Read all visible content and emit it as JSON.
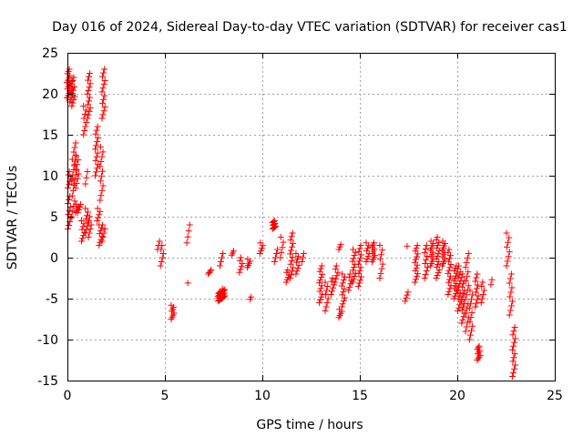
{
  "chart_data": {
    "type": "scatter",
    "title": "Day 016 of 2024, Sidereal Day-to-day VTEC variation (SDTVAR) for receiver cas1",
    "xlabel": "GPS time / hours",
    "ylabel": "SDTVAR / TECUs",
    "xlim": [
      0,
      25
    ],
    "ylim": [
      -15,
      25
    ],
    "xticks": [
      0,
      5,
      10,
      15,
      20,
      25
    ],
    "yticks": [
      -15,
      -10,
      -5,
      0,
      5,
      10,
      15,
      20,
      25
    ],
    "grid": true,
    "marker": "+",
    "color": "#ff0000",
    "clusters": [
      {
        "x": 0.05,
        "ymin": 19.5,
        "ymax": 23.0,
        "n": 14
      },
      {
        "x": 0.1,
        "ymin": 8.5,
        "ymax": 10.5,
        "n": 6
      },
      {
        "x": 0.1,
        "ymin": 3.5,
        "ymax": 7.5,
        "n": 10
      },
      {
        "x": 0.2,
        "ymin": 19.0,
        "ymax": 21.5,
        "n": 10
      },
      {
        "x": 0.3,
        "ymin": 18.5,
        "ymax": 22.0,
        "n": 10
      },
      {
        "x": 0.3,
        "ymin": 5.0,
        "ymax": 12.0,
        "n": 12
      },
      {
        "x": 0.4,
        "ymin": 9.0,
        "ymax": 14.0,
        "n": 10
      },
      {
        "x": 0.5,
        "ymin": 8.5,
        "ymax": 12.5,
        "n": 8
      },
      {
        "x": 0.5,
        "ymin": 5.5,
        "ymax": 6.5,
        "n": 5
      },
      {
        "x": 0.6,
        "ymin": 5.5,
        "ymax": 6.5,
        "n": 4
      },
      {
        "x": 0.8,
        "ymin": 2.0,
        "ymax": 4.5,
        "n": 8
      },
      {
        "x": 0.9,
        "ymin": 15.0,
        "ymax": 18.5,
        "n": 8
      },
      {
        "x": 1.0,
        "ymin": 3.0,
        "ymax": 6.0,
        "n": 8
      },
      {
        "x": 1.0,
        "ymin": 9.0,
        "ymax": 10.5,
        "n": 3
      },
      {
        "x": 1.1,
        "ymin": 17.0,
        "ymax": 22.5,
        "n": 14
      },
      {
        "x": 1.15,
        "ymin": 2.5,
        "ymax": 5.0,
        "n": 6
      },
      {
        "x": 1.5,
        "ymin": 10.0,
        "ymax": 16.0,
        "n": 14
      },
      {
        "x": 1.6,
        "ymin": 4.5,
        "ymax": 6.0,
        "n": 5
      },
      {
        "x": 1.7,
        "ymin": 1.5,
        "ymax": 4.0,
        "n": 8
      },
      {
        "x": 1.75,
        "ymin": 7.0,
        "ymax": 13.5,
        "n": 12
      },
      {
        "x": 1.85,
        "ymin": 17.0,
        "ymax": 23.0,
        "n": 14
      },
      {
        "x": 1.85,
        "ymin": 2.0,
        "ymax": 4.0,
        "n": 5
      },
      {
        "x": 4.7,
        "ymin": 1.0,
        "ymax": 2.0,
        "n": 3
      },
      {
        "x": 4.85,
        "ymin": -1.0,
        "ymax": 1.5,
        "n": 6
      },
      {
        "x": 5.4,
        "ymin": -7.5,
        "ymax": -5.8,
        "n": 8
      },
      {
        "x": 6.2,
        "ymin": 1.8,
        "ymax": 4.0,
        "n": 4
      },
      {
        "x": 6.25,
        "ymin": -3.2,
        "ymax": -3.0,
        "n": 1
      },
      {
        "x": 7.3,
        "ymin": -2.0,
        "ymax": -1.5,
        "n": 4
      },
      {
        "x": 7.8,
        "ymin": -5.3,
        "ymax": -4.2,
        "n": 14
      },
      {
        "x": 7.9,
        "ymin": -1.0,
        "ymax": 0.5,
        "n": 4
      },
      {
        "x": 8.0,
        "ymin": -5.0,
        "ymax": -3.8,
        "n": 12
      },
      {
        "x": 8.5,
        "ymin": 0.3,
        "ymax": 0.8,
        "n": 3
      },
      {
        "x": 8.9,
        "ymin": -1.8,
        "ymax": 0.0,
        "n": 6
      },
      {
        "x": 9.3,
        "ymin": -1.2,
        "ymax": -0.2,
        "n": 5
      },
      {
        "x": 9.45,
        "ymin": -5.1,
        "ymax": -4.8,
        "n": 2
      },
      {
        "x": 9.95,
        "ymin": 0.5,
        "ymax": 1.8,
        "n": 5
      },
      {
        "x": 10.6,
        "ymin": 3.5,
        "ymax": 4.5,
        "n": 10
      },
      {
        "x": 10.7,
        "ymin": -0.5,
        "ymax": 1.0,
        "n": 4
      },
      {
        "x": 11.0,
        "ymin": 0.0,
        "ymax": 2.5,
        "n": 5
      },
      {
        "x": 11.3,
        "ymin": -3.0,
        "ymax": -1.5,
        "n": 6
      },
      {
        "x": 11.5,
        "ymin": -2.5,
        "ymax": 3.0,
        "n": 14
      },
      {
        "x": 11.8,
        "ymin": -2.0,
        "ymax": 0.5,
        "n": 8
      },
      {
        "x": 12.1,
        "ymin": -0.5,
        "ymax": 0.5,
        "n": 3
      },
      {
        "x": 13.0,
        "ymin": -5.5,
        "ymax": -1.0,
        "n": 14
      },
      {
        "x": 13.3,
        "ymin": -6.5,
        "ymax": -3.0,
        "n": 8
      },
      {
        "x": 13.6,
        "ymin": -4.5,
        "ymax": -2.5,
        "n": 6
      },
      {
        "x": 13.8,
        "ymin": -3.0,
        "ymax": -1.0,
        "n": 6
      },
      {
        "x": 14.0,
        "ymin": 1.0,
        "ymax": 1.6,
        "n": 3
      },
      {
        "x": 14.0,
        "ymin": -7.3,
        "ymax": -6.3,
        "n": 5
      },
      {
        "x": 14.15,
        "ymin": -6.0,
        "ymax": -2.0,
        "n": 12
      },
      {
        "x": 14.5,
        "ymin": -4.0,
        "ymax": -2.0,
        "n": 6
      },
      {
        "x": 14.7,
        "ymin": -3.0,
        "ymax": 1.0,
        "n": 12
      },
      {
        "x": 15.0,
        "ymin": -3.5,
        "ymax": 1.5,
        "n": 14
      },
      {
        "x": 15.4,
        "ymin": -0.5,
        "ymax": 1.8,
        "n": 8
      },
      {
        "x": 15.7,
        "ymin": -0.5,
        "ymax": 1.8,
        "n": 10
      },
      {
        "x": 16.1,
        "ymin": -2.5,
        "ymax": 1.5,
        "n": 8
      },
      {
        "x": 17.4,
        "ymin": -5.3,
        "ymax": -4.2,
        "n": 4
      },
      {
        "x": 17.5,
        "ymin": 1.3,
        "ymax": 1.5,
        "n": 1
      },
      {
        "x": 17.9,
        "ymin": -3.0,
        "ymax": 1.5,
        "n": 14
      },
      {
        "x": 18.4,
        "ymin": -2.5,
        "ymax": 1.5,
        "n": 10
      },
      {
        "x": 18.7,
        "ymin": -1.0,
        "ymax": 2.0,
        "n": 12
      },
      {
        "x": 19.0,
        "ymin": -2.5,
        "ymax": 2.5,
        "n": 16
      },
      {
        "x": 19.3,
        "ymin": -1.0,
        "ymax": 2.0,
        "n": 12
      },
      {
        "x": 19.6,
        "ymin": -4.5,
        "ymax": 1.0,
        "n": 16
      },
      {
        "x": 19.9,
        "ymin": -5.0,
        "ymax": -1.0,
        "n": 14
      },
      {
        "x": 20.1,
        "ymin": -6.5,
        "ymax": -1.0,
        "n": 16
      },
      {
        "x": 20.3,
        "ymin": -8.0,
        "ymax": -2.0,
        "n": 16
      },
      {
        "x": 20.5,
        "ymin": -9.0,
        "ymax": 0.5,
        "n": 18
      },
      {
        "x": 20.7,
        "ymin": -10.0,
        "ymax": -4.0,
        "n": 12
      },
      {
        "x": 21.0,
        "ymin": -6.0,
        "ymax": -2.0,
        "n": 10
      },
      {
        "x": 21.1,
        "ymin": -12.5,
        "ymax": -10.8,
        "n": 10
      },
      {
        "x": 21.3,
        "ymin": -5.5,
        "ymax": -3.0,
        "n": 6
      },
      {
        "x": 21.8,
        "ymin": -3.3,
        "ymax": -2.7,
        "n": 2
      },
      {
        "x": 22.6,
        "ymin": -1.0,
        "ymax": 3.0,
        "n": 8
      },
      {
        "x": 22.75,
        "ymin": -7.0,
        "ymax": -2.0,
        "n": 10
      },
      {
        "x": 22.9,
        "ymin": -14.5,
        "ymax": -8.5,
        "n": 14
      }
    ]
  }
}
